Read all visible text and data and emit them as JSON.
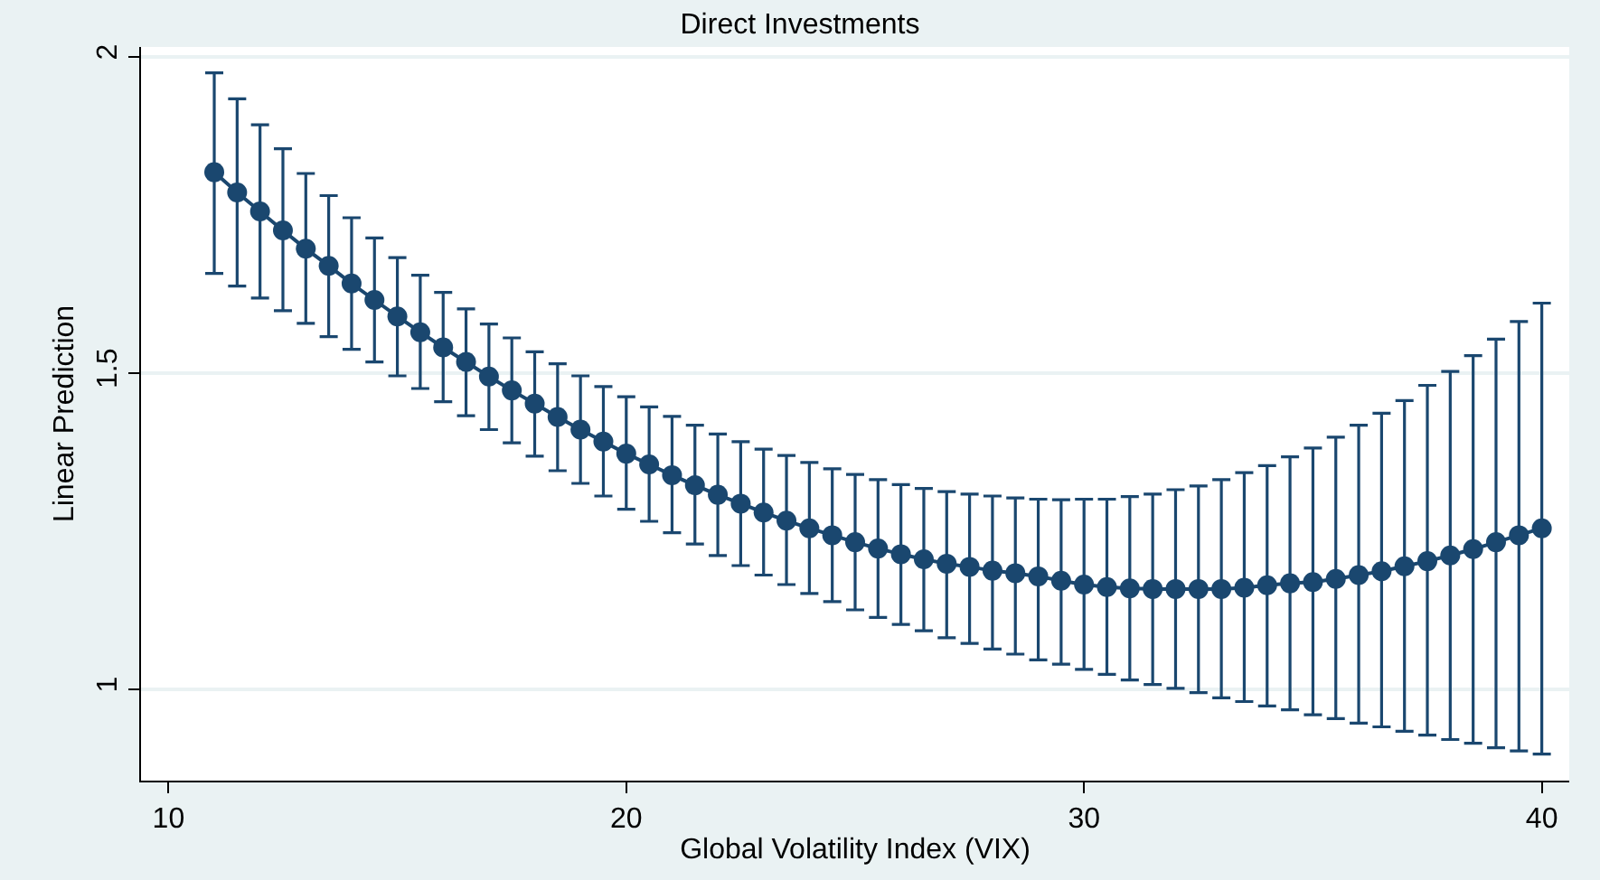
{
  "chart_data": {
    "type": "line",
    "title": "Direct Investments",
    "xlabel": "Global Volatility Index (VIX)",
    "ylabel": "Linear Prediction",
    "x": [
      11,
      11.5,
      12,
      12.5,
      13,
      13.5,
      14,
      14.5,
      15,
      15.5,
      16,
      16.5,
      17,
      17.5,
      18,
      18.5,
      19,
      19.5,
      20,
      20.5,
      21,
      21.5,
      22,
      22.5,
      23,
      23.5,
      24,
      24.5,
      25,
      25.5,
      26,
      26.5,
      27,
      27.5,
      28,
      28.5,
      29,
      29.5,
      30,
      30.5,
      31,
      31.5,
      32,
      32.5,
      33,
      33.5,
      34,
      34.5,
      35,
      35.5,
      36,
      36.5,
      37,
      37.5,
      38,
      38.5,
      39,
      39.5,
      40
    ],
    "series": [
      {
        "color": "#1a476f",
        "values": [
          1.817,
          1.785,
          1.755,
          1.725,
          1.696,
          1.669,
          1.641,
          1.615,
          1.589,
          1.564,
          1.54,
          1.517,
          1.494,
          1.472,
          1.451,
          1.43,
          1.41,
          1.391,
          1.372,
          1.355,
          1.338,
          1.322,
          1.307,
          1.293,
          1.279,
          1.266,
          1.254,
          1.243,
          1.232,
          1.222,
          1.213,
          1.205,
          1.198,
          1.193,
          1.187,
          1.183,
          1.178,
          1.171,
          1.165,
          1.161,
          1.159,
          1.158,
          1.158,
          1.158,
          1.158,
          1.16,
          1.164,
          1.167,
          1.169,
          1.174,
          1.18,
          1.186,
          1.194,
          1.202,
          1.211,
          1.221,
          1.232,
          1.243,
          1.254
        ],
        "errors": [
          [
            1.657,
            1.974
          ],
          [
            1.637,
            1.933
          ],
          [
            1.618,
            1.892
          ],
          [
            1.598,
            1.854
          ],
          [
            1.578,
            1.815
          ],
          [
            1.557,
            1.78
          ],
          [
            1.537,
            1.745
          ],
          [
            1.517,
            1.713
          ],
          [
            1.495,
            1.682
          ],
          [
            1.475,
            1.654
          ],
          [
            1.454,
            1.627
          ],
          [
            1.432,
            1.601
          ],
          [
            1.41,
            1.577
          ],
          [
            1.389,
            1.555
          ],
          [
            1.368,
            1.533
          ],
          [
            1.345,
            1.514
          ],
          [
            1.325,
            1.495
          ],
          [
            1.305,
            1.478
          ],
          [
            1.284,
            1.462
          ],
          [
            1.265,
            1.446
          ],
          [
            1.247,
            1.431
          ],
          [
            1.229,
            1.417
          ],
          [
            1.211,
            1.403
          ],
          [
            1.195,
            1.391
          ],
          [
            1.18,
            1.379
          ],
          [
            1.165,
            1.369
          ],
          [
            1.151,
            1.358
          ],
          [
            1.138,
            1.348
          ],
          [
            1.125,
            1.339
          ],
          [
            1.113,
            1.331
          ],
          [
            1.102,
            1.323
          ],
          [
            1.092,
            1.317
          ],
          [
            1.081,
            1.312
          ],
          [
            1.072,
            1.308
          ],
          [
            1.063,
            1.305
          ],
          [
            1.055,
            1.302
          ],
          [
            1.046,
            1.3
          ],
          [
            1.039,
            1.299
          ],
          [
            1.031,
            1.3
          ],
          [
            1.023,
            1.3
          ],
          [
            1.014,
            1.304
          ],
          [
            1.007,
            1.308
          ],
          [
            1.001,
            1.315
          ],
          [
            0.994,
            1.321
          ],
          [
            0.986,
            1.331
          ],
          [
            0.98,
            1.342
          ],
          [
            0.973,
            1.353
          ],
          [
            0.967,
            1.367
          ],
          [
            0.959,
            1.381
          ],
          [
            0.953,
            1.398
          ],
          [
            0.946,
            1.417
          ],
          [
            0.94,
            1.436
          ],
          [
            0.933,
            1.456
          ],
          [
            0.927,
            1.48
          ],
          [
            0.92,
            1.502
          ],
          [
            0.914,
            1.527
          ],
          [
            0.907,
            1.553
          ],
          [
            0.902,
            1.581
          ],
          [
            0.897,
            1.61
          ]
        ]
      }
    ],
    "xlim": [
      9.4,
      40.6
    ],
    "xticks": [
      10,
      20,
      30,
      40
    ],
    "ylim": [
      0.855,
      2.015
    ],
    "yticks": [
      1,
      1.5,
      2
    ],
    "grid": "y",
    "marker": "circle",
    "line_style": "solid"
  }
}
